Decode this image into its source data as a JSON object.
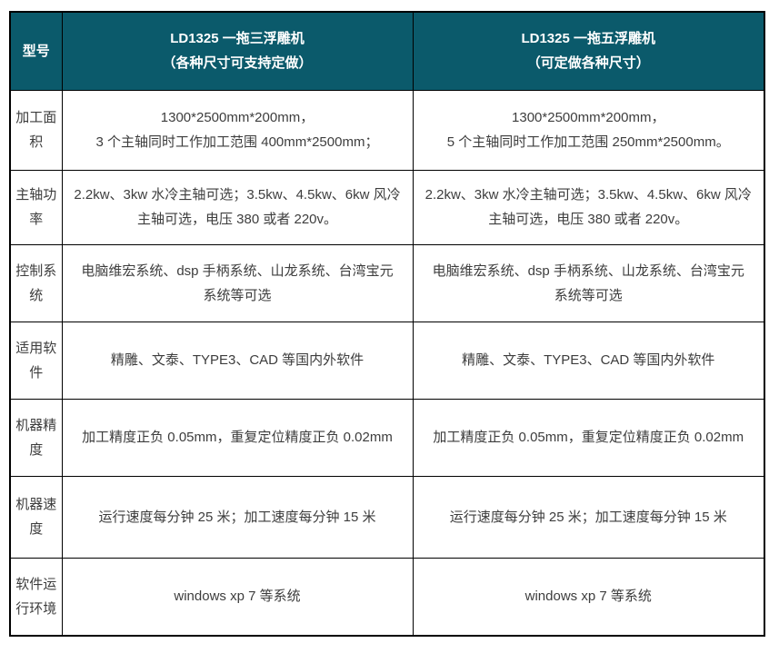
{
  "table": {
    "header": {
      "model_label": "型号",
      "machine1_title": "LD1325 一拖三浮雕机\n（各种尺寸可支持定做）",
      "machine2_title": "LD1325 一拖五浮雕机\n（可定做各种尺寸）"
    },
    "rows": [
      {
        "label": "加工面\n积",
        "machine1": "1300*2500mm*200mm，\n3 个主轴同时工作加工范围 400mm*2500mm；",
        "machine2": "1300*2500mm*200mm，\n5 个主轴同时工作加工范围 250mm*2500mm。"
      },
      {
        "label": "主轴功\n率",
        "machine1": "2.2kw、3kw 水冷主轴可选；3.5kw、4.5kw、6kw 风冷\n主轴可选，电压 380 或者 220v。",
        "machine2": "2.2kw、3kw 水冷主轴可选；3.5kw、4.5kw、6kw 风冷\n主轴可选，电压 380 或者 220v。"
      },
      {
        "label": "控制系\n统",
        "machine1": "电脑维宏系统、dsp 手柄系统、山龙系统、台湾宝元\n系统等可选",
        "machine2": "电脑维宏系统、dsp 手柄系统、山龙系统、台湾宝元\n系统等可选"
      },
      {
        "label": "适用软\n件",
        "machine1": "精雕、文泰、TYPE3、CAD 等国内外软件",
        "machine2": "精雕、文泰、TYPE3、CAD 等国内外软件"
      },
      {
        "label": "机器精\n度",
        "machine1": "加工精度正负 0.05mm，重复定位精度正负 0.02mm",
        "machine2": "加工精度正负 0.05mm，重复定位精度正负 0.02mm"
      },
      {
        "label": "机器速\n度",
        "machine1": "运行速度每分钟 25 米；加工速度每分钟 15 米",
        "machine2": "运行速度每分钟 25 米；加工速度每分钟 15 米"
      },
      {
        "label": "软件运\n行环境",
        "machine1": "windows xp  7 等系统",
        "machine2": "windows xp  7 等系统"
      }
    ],
    "colors": {
      "header_bg": "#0b5a6b",
      "header_text": "#ffffff",
      "body_text": "#3d3d3d",
      "grid_border": "#000000"
    }
  }
}
